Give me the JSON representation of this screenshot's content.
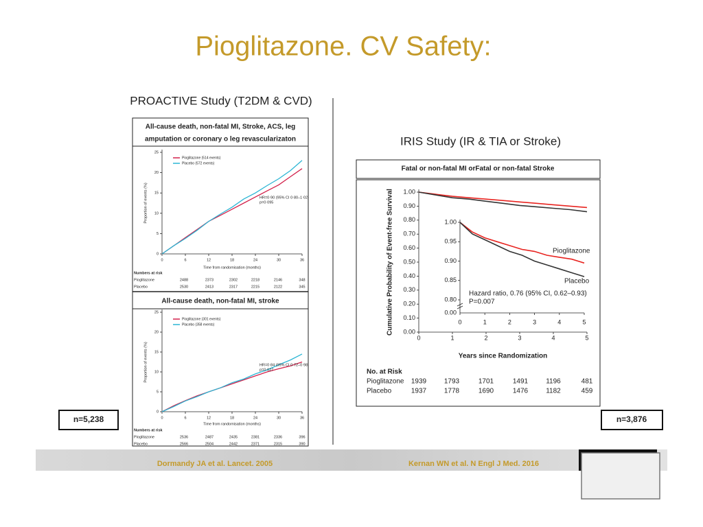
{
  "title": "Pioglitazone. CV Safety:",
  "left_heading": "PROACTIVE Study (T2DM & CVD)",
  "right_heading": "IRIS Study (IR & TIA or Stroke)",
  "left_n": "n=5,238",
  "right_n": "n=3,876",
  "footer_left": "Dormandy JA et al. Lancet. 2005",
  "footer_right": "Kernan WN et al. N Engl J Med. 2016",
  "chart_data": [
    {
      "type": "line",
      "title": [
        "All-cause death, non-fatal MI, Stroke, ACS, leg",
        "amputation or coronary o leg revascularizaton"
      ],
      "x_label": "Time from randomisation (months)",
      "y_label": "Proportion of events (%)",
      "x": [
        0,
        3,
        6,
        9,
        12,
        15,
        18,
        21,
        24,
        27,
        30,
        33,
        36
      ],
      "series": [
        {
          "name": "Pioglitazone (514 events)",
          "color": "#d2204a",
          "values": [
            0,
            2,
            4,
            6,
            8,
            9.5,
            11,
            12.5,
            14,
            15.5,
            17,
            19,
            21
          ]
        },
        {
          "name": "Placebo (572 events)",
          "color": "#2bb5d4",
          "values": [
            0,
            2,
            3.8,
            5.8,
            8,
            9.8,
            11.5,
            13.5,
            15,
            16.8,
            18.5,
            20.5,
            23
          ]
        }
      ],
      "xlim": [
        0,
        36
      ],
      "xticks": [
        0,
        6,
        12,
        18,
        24,
        30,
        36
      ],
      "ylim": [
        0,
        25
      ],
      "yticks": [
        0,
        5,
        10,
        15,
        20,
        25
      ],
      "annotations": [
        "HR=0·90 (95% CI 0·80–1·02)",
        "p=0·095"
      ],
      "risk_table": {
        "title": "Numbers at risk",
        "rows": [
          {
            "name": "Pioglitazone",
            "values": [
              2488,
              2373,
              2302,
              2218,
              2146,
              348
            ]
          },
          {
            "name": "Placebo",
            "values": [
              2530,
              2413,
              2317,
              2215,
              2122,
              345
            ]
          }
        ]
      }
    },
    {
      "type": "line",
      "title": [
        "All-cause death, non-fatal MI, stroke"
      ],
      "x_label": "Time from randomisation (months)",
      "y_label": "Proportion of events (%)",
      "x": [
        0,
        3,
        6,
        9,
        12,
        15,
        18,
        21,
        24,
        27,
        30,
        33,
        36
      ],
      "series": [
        {
          "name": "Pioglitazone (301 events)",
          "color": "#d2204a",
          "values": [
            0,
            1.5,
            2.8,
            4,
            5,
            6,
            7,
            8,
            9,
            10,
            10.8,
            11.5,
            12.5
          ]
        },
        {
          "name": "Placebo (358 events)",
          "color": "#2bb5d4",
          "values": [
            0,
            1.3,
            2.7,
            3.8,
            5,
            6,
            7.3,
            8.2,
            9.5,
            10.5,
            11.8,
            13,
            14.5
          ]
        }
      ],
      "xlim": [
        0,
        36
      ],
      "xticks": [
        0,
        6,
        12,
        18,
        24,
        30,
        36
      ],
      "ylim": [
        0,
        25
      ],
      "yticks": [
        0,
        5,
        10,
        15,
        20,
        25
      ],
      "annotations": [
        "HR=0·84 (95% CI 0·72–0·98)",
        "p=0·027"
      ],
      "risk_table": {
        "title": "Numbers at risk",
        "rows": [
          {
            "name": "Pioglitazone",
            "values": [
              2536,
              2487,
              2435,
              2381,
              2336,
              396
            ]
          },
          {
            "name": "Placebo",
            "values": [
              2566,
              2504,
              2442,
              2371,
              2315,
              390
            ]
          }
        ]
      }
    },
    {
      "type": "line",
      "title": [
        "Fatal or non-fatal MI orFatal or non-fatal Stroke"
      ],
      "x_label": "Years since Randomization",
      "y_label": "Cumulative Probability of Event-free Survival",
      "x": [
        0,
        0.5,
        1,
        1.5,
        2,
        2.5,
        3,
        3.5,
        4,
        4.5,
        5
      ],
      "series": [
        {
          "color": "#e8231f",
          "values": [
            1,
            0.985,
            0.97,
            0.96,
            0.95,
            0.94,
            0.93,
            0.92,
            0.91,
            0.9,
            0.89
          ]
        },
        {
          "color": "#333333",
          "values": [
            1,
            0.98,
            0.96,
            0.95,
            0.935,
            0.92,
            0.905,
            0.895,
            0.885,
            0.875,
            0.86
          ]
        }
      ],
      "xlim": [
        0,
        5
      ],
      "xticks": [
        0,
        1,
        2,
        3,
        4,
        5
      ],
      "ylim": [
        0,
        1
      ],
      "yticks": [
        {
          "value": 0,
          "label": "0.00"
        },
        {
          "value": 0.1,
          "label": "0.10"
        },
        {
          "value": 0.2,
          "label": "0.20"
        },
        {
          "value": 0.3,
          "label": "0.30"
        },
        {
          "value": 0.4,
          "label": "0.40"
        },
        {
          "value": 0.5,
          "label": "0.50"
        },
        {
          "value": 0.6,
          "label": "0.60"
        },
        {
          "value": 0.7,
          "label": "0.70"
        },
        {
          "value": 0.8,
          "label": "0.80"
        },
        {
          "value": 0.9,
          "label": "0.90"
        },
        {
          "value": 1,
          "label": "1.00"
        }
      ],
      "risk_table": {
        "title": "No. at Risk",
        "rows": [
          {
            "name": "Pioglitazone",
            "values": [
              1939,
              1793,
              1701,
              1491,
              1196,
              481
            ]
          },
          {
            "name": "Placebo",
            "values": [
              1937,
              1778,
              1690,
              1476,
              1182,
              459
            ]
          }
        ]
      }
    },
    {
      "type": "line",
      "x": [
        0,
        0.5,
        1,
        1.5,
        2,
        2.5,
        3,
        3.5,
        4,
        4.5,
        5
      ],
      "series": [
        {
          "name": "Pioglitazone",
          "color": "#e8231f",
          "values": [
            1,
            0.975,
            0.96,
            0.95,
            0.94,
            0.93,
            0.925,
            0.915,
            0.91,
            0.905,
            0.895
          ]
        },
        {
          "name": "Placebo",
          "color": "#333333",
          "values": [
            1,
            0.97,
            0.955,
            0.94,
            0.925,
            0.915,
            0.9,
            0.89,
            0.88,
            0.87,
            0.86
          ]
        }
      ],
      "xlim": [
        0,
        5
      ],
      "xticks": [
        0,
        1,
        2,
        3,
        4,
        5
      ],
      "ylim": [
        0.8,
        1
      ],
      "yticks": [
        {
          "value": 0.8,
          "label": "0.80"
        },
        {
          "value": 0.85,
          "label": "0.85"
        },
        {
          "value": 0.9,
          "label": "0.90"
        },
        {
          "value": 0.95,
          "label": "0.95"
        },
        {
          "value": 1,
          "label": "1.00"
        }
      ],
      "ybreak_label": "0.00",
      "annotations": [
        "Hazard ratio, 0.76 (95% CI, 0.62–0.93)",
        "P=0.007"
      ]
    }
  ]
}
